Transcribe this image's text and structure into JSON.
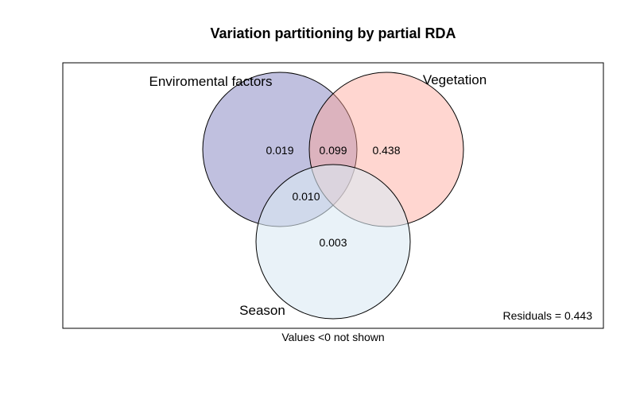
{
  "title": "Variation partitioning by partial RDA",
  "sets": {
    "environment": {
      "label": "Enviromental factors",
      "fill": "#8c8cc4",
      "opacity": 0.55
    },
    "vegetation": {
      "label": "Vegetation",
      "fill": "#ffa597",
      "opacity": 0.45
    },
    "season": {
      "label": "Season",
      "fill": "#dbeaf4",
      "opacity": 0.6
    }
  },
  "values": {
    "environment_only": "0.019",
    "environment_vegetation": "0.099",
    "vegetation_only": "0.438",
    "environment_season": "0.010",
    "season_only": "0.003"
  },
  "residuals": "Residuals = 0.443",
  "footnote": "Values <0 not shown"
}
